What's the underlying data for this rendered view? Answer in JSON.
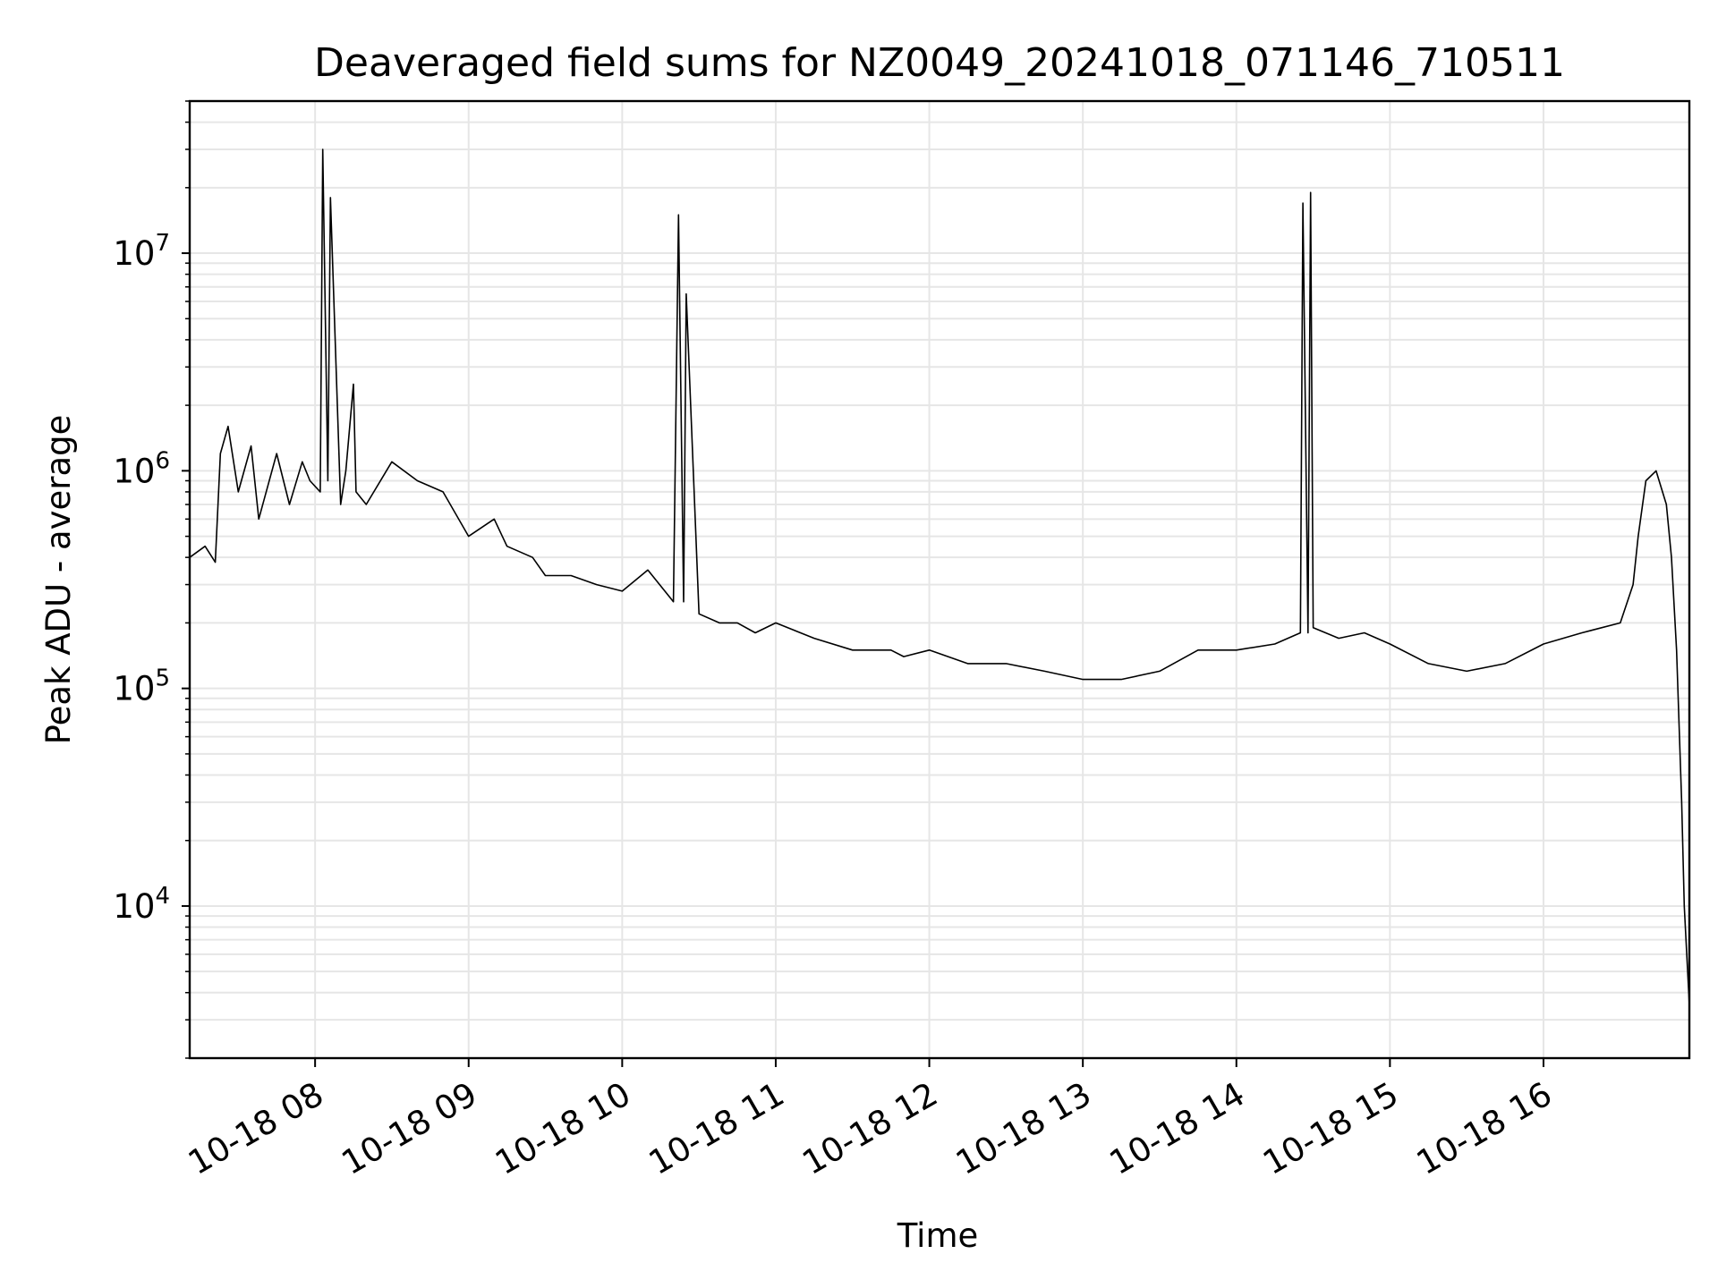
{
  "chart_data": {
    "type": "line",
    "title": "Deaveraged field sums for NZ0049_20241018_071146_710511",
    "xlabel": "Time",
    "ylabel": "Peak ADU - average",
    "y_scale": "log",
    "ylim": [
      2000,
      50000000
    ],
    "xlim": [
      "2024-10-18 07:11",
      "2024-10-18 16:57"
    ],
    "grid": true,
    "line_color": "#000000",
    "grid_color": "#e6e6e6",
    "x_ticks": [
      {
        "value": "2024-10-18 08:00",
        "label": "10-18 08"
      },
      {
        "value": "2024-10-18 09:00",
        "label": "10-18 09"
      },
      {
        "value": "2024-10-18 10:00",
        "label": "10-18 10"
      },
      {
        "value": "2024-10-18 11:00",
        "label": "10-18 11"
      },
      {
        "value": "2024-10-18 12:00",
        "label": "10-18 12"
      },
      {
        "value": "2024-10-18 13:00",
        "label": "10-18 13"
      },
      {
        "value": "2024-10-18 14:00",
        "label": "10-18 14"
      },
      {
        "value": "2024-10-18 15:00",
        "label": "10-18 15"
      },
      {
        "value": "2024-10-18 16:00",
        "label": "10-18 16"
      }
    ],
    "y_ticks": [
      {
        "value": 10000,
        "base": "10",
        "exp": "4"
      },
      {
        "value": 100000,
        "base": "10",
        "exp": "5"
      },
      {
        "value": 1000000,
        "base": "10",
        "exp": "6"
      },
      {
        "value": 10000000,
        "base": "10",
        "exp": "7"
      }
    ],
    "series": [
      {
        "x": [
          "2024-10-18 07:11",
          "2024-10-18 07:17",
          "2024-10-18 07:21",
          "2024-10-18 07:23",
          "2024-10-18 07:26",
          "2024-10-18 07:30",
          "2024-10-18 07:35",
          "2024-10-18 07:38",
          "2024-10-18 07:45",
          "2024-10-18 07:50",
          "2024-10-18 07:55",
          "2024-10-18 07:58",
          "2024-10-18 08:02",
          "2024-10-18 08:03",
          "2024-10-18 08:05",
          "2024-10-18 08:06",
          "2024-10-18 08:10",
          "2024-10-18 08:12",
          "2024-10-18 08:15",
          "2024-10-18 08:16",
          "2024-10-18 08:20",
          "2024-10-18 08:30",
          "2024-10-18 08:40",
          "2024-10-18 08:50",
          "2024-10-18 09:00",
          "2024-10-18 09:10",
          "2024-10-18 09:15",
          "2024-10-18 09:25",
          "2024-10-18 09:30",
          "2024-10-18 09:40",
          "2024-10-18 09:50",
          "2024-10-18 10:00",
          "2024-10-18 10:10",
          "2024-10-18 10:20",
          "2024-10-18 10:22",
          "2024-10-18 10:24",
          "2024-10-18 10:25",
          "2024-10-18 10:30",
          "2024-10-18 10:38",
          "2024-10-18 10:45",
          "2024-10-18 10:52",
          "2024-10-18 11:00",
          "2024-10-18 11:15",
          "2024-10-18 11:30",
          "2024-10-18 11:45",
          "2024-10-18 11:50",
          "2024-10-18 12:00",
          "2024-10-18 12:15",
          "2024-10-18 12:30",
          "2024-10-18 12:45",
          "2024-10-18 13:00",
          "2024-10-18 13:15",
          "2024-10-18 13:30",
          "2024-10-18 13:45",
          "2024-10-18 14:00",
          "2024-10-18 14:15",
          "2024-10-18 14:25",
          "2024-10-18 14:26",
          "2024-10-18 14:28",
          "2024-10-18 14:29",
          "2024-10-18 14:30",
          "2024-10-18 14:40",
          "2024-10-18 14:50",
          "2024-10-18 15:00",
          "2024-10-18 15:15",
          "2024-10-18 15:30",
          "2024-10-18 15:45",
          "2024-10-18 16:00",
          "2024-10-18 16:15",
          "2024-10-18 16:30",
          "2024-10-18 16:35",
          "2024-10-18 16:37",
          "2024-10-18 16:40",
          "2024-10-18 16:44",
          "2024-10-18 16:48",
          "2024-10-18 16:50",
          "2024-10-18 16:52",
          "2024-10-18 16:54",
          "2024-10-18 16:55",
          "2024-10-18 16:57"
        ],
        "y": [
          400000,
          450000,
          380000,
          1200000,
          1600000,
          800000,
          1300000,
          600000,
          1200000,
          700000,
          1100000,
          900000,
          800000,
          30000000,
          900000,
          18000000,
          700000,
          1000000,
          2500000,
          800000,
          700000,
          1100000,
          900000,
          800000,
          500000,
          600000,
          450000,
          400000,
          330000,
          330000,
          300000,
          280000,
          350000,
          250000,
          15000000,
          250000,
          6500000,
          220000,
          200000,
          200000,
          180000,
          200000,
          170000,
          150000,
          150000,
          140000,
          150000,
          130000,
          130000,
          120000,
          110000,
          110000,
          120000,
          150000,
          150000,
          160000,
          180000,
          17000000,
          180000,
          19000000,
          190000,
          170000,
          180000,
          160000,
          130000,
          120000,
          130000,
          160000,
          180000,
          200000,
          300000,
          500000,
          900000,
          1000000,
          700000,
          400000,
          150000,
          30000,
          10000,
          3500
        ]
      }
    ]
  }
}
